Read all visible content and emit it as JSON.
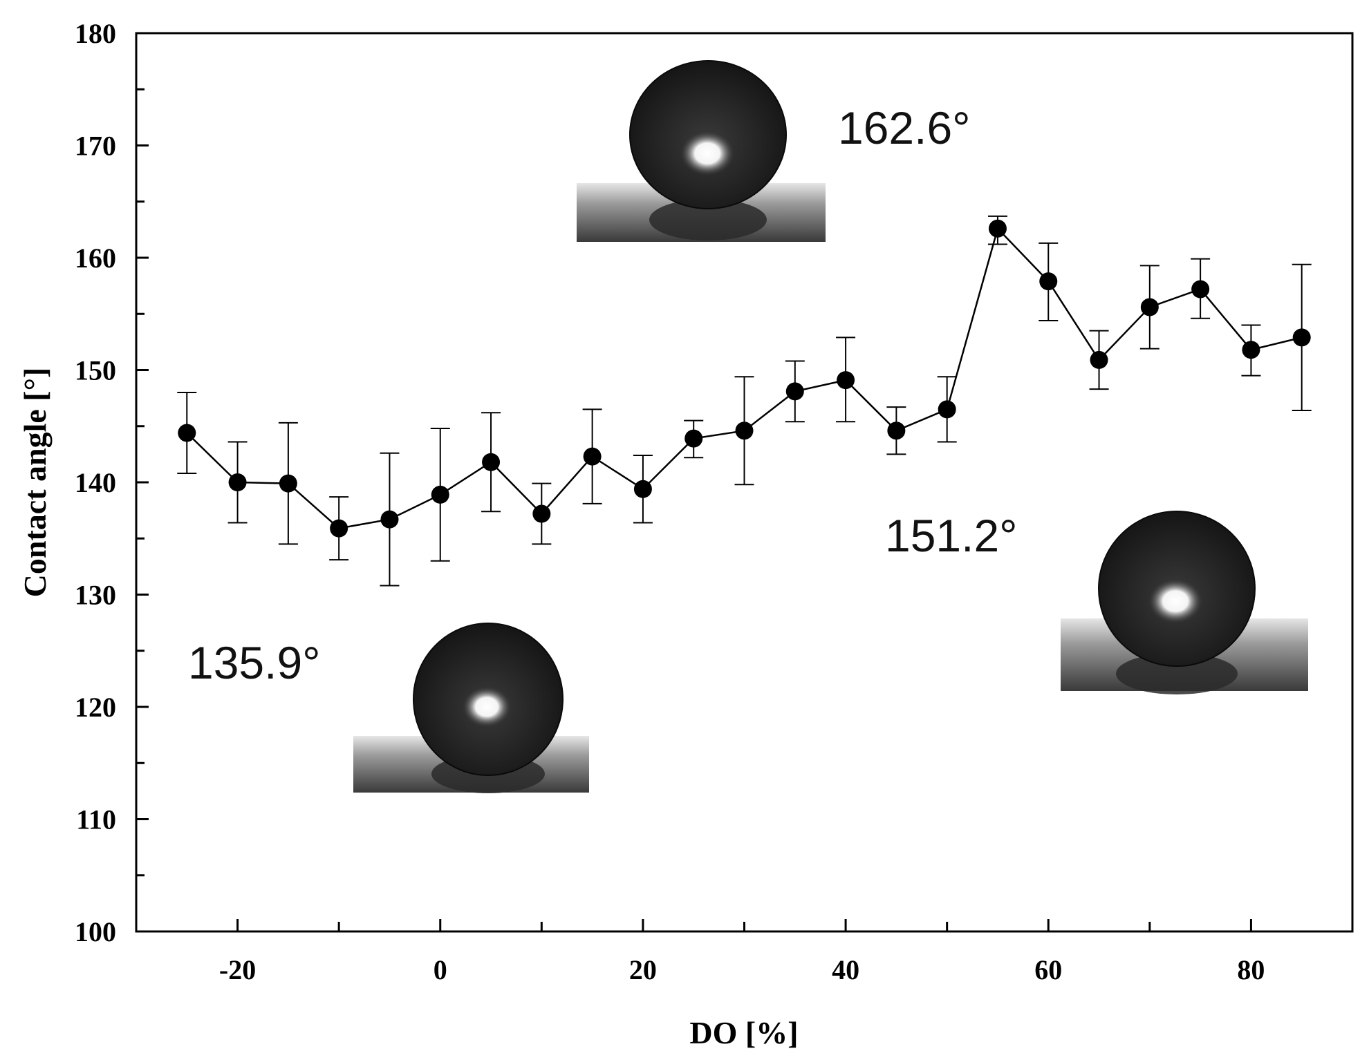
{
  "chart_data": {
    "type": "line",
    "title": "",
    "xlabel": "DO [%]",
    "ylabel": "Contact angle [°]",
    "xlim": [
      -30,
      90
    ],
    "ylim": [
      100,
      180
    ],
    "xticks": [
      -20,
      0,
      20,
      40,
      60,
      80
    ],
    "yticks": [
      100,
      110,
      120,
      130,
      140,
      150,
      160,
      170,
      180
    ],
    "series": [
      {
        "name": "Contact angle",
        "x": [
          -25,
          -20,
          -15,
          -10,
          -5,
          0,
          5,
          10,
          15,
          20,
          25,
          30,
          35,
          40,
          45,
          50,
          55,
          60,
          65,
          70,
          75,
          80,
          85
        ],
        "values": [
          144.4,
          140.0,
          139.9,
          135.9,
          136.7,
          138.9,
          141.8,
          137.2,
          142.3,
          139.4,
          143.9,
          144.6,
          148.1,
          149.1,
          144.6,
          146.5,
          162.6,
          157.9,
          150.9,
          155.6,
          157.2,
          151.8,
          152.9
        ],
        "err_low": [
          140.8,
          136.4,
          134.5,
          133.1,
          130.8,
          133.0,
          137.4,
          134.5,
          138.1,
          136.4,
          142.2,
          139.8,
          145.4,
          145.4,
          142.5,
          143.6,
          161.2,
          154.4,
          148.3,
          151.9,
          154.6,
          149.5,
          146.4
        ],
        "err_high": [
          148.0,
          143.6,
          145.3,
          138.7,
          142.6,
          144.8,
          146.2,
          139.9,
          146.5,
          142.4,
          145.5,
          149.4,
          150.8,
          152.9,
          146.7,
          149.4,
          163.7,
          161.3,
          153.5,
          159.3,
          159.9,
          154.0,
          159.4
        ]
      }
    ],
    "annotations": [
      "162.6°",
      "151.2°",
      "135.9°"
    ],
    "insets": [
      "droplet-photo",
      "droplet-photo",
      "droplet-photo"
    ],
    "grid": false,
    "legend": "none"
  }
}
